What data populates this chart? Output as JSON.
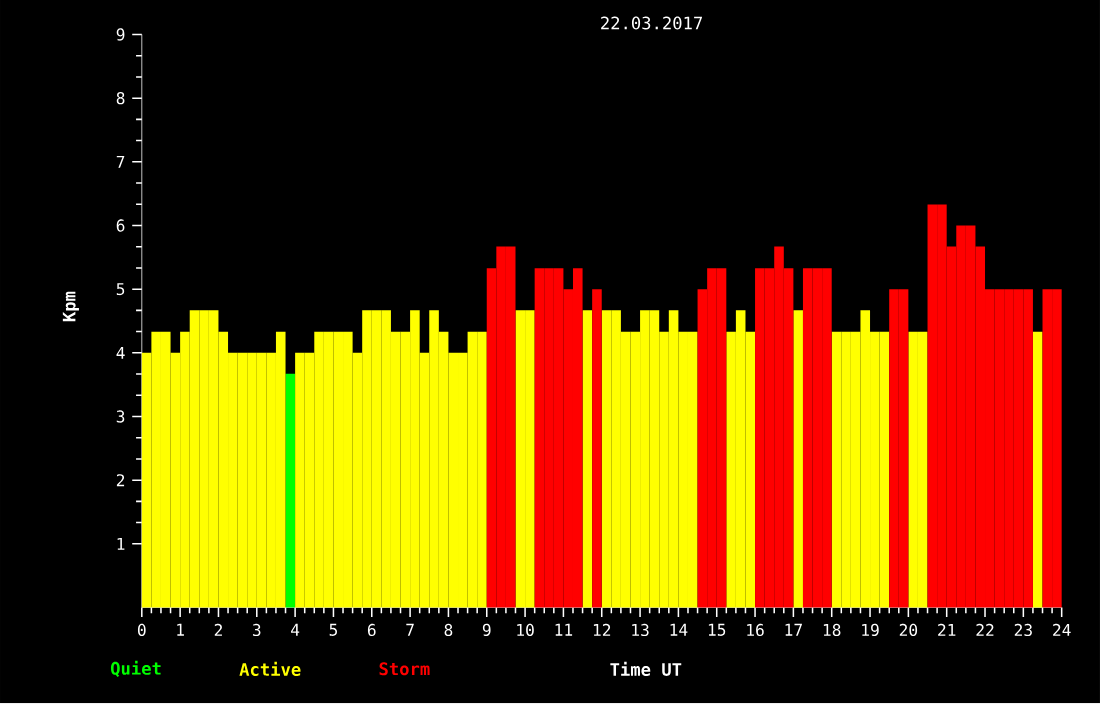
{
  "chart_data": {
    "type": "bar",
    "title": "22.03.2017",
    "xlabel": "Time UT",
    "ylabel": "Kpm",
    "x": [
      0.125,
      0.375,
      0.625,
      0.875,
      1.125,
      1.375,
      1.625,
      1.875,
      2.125,
      2.375,
      2.625,
      2.875,
      3.125,
      3.375,
      3.625,
      3.875,
      4.125,
      4.375,
      4.625,
      4.875,
      5.125,
      5.375,
      5.625,
      5.875,
      6.125,
      6.375,
      6.625,
      6.875,
      7.125,
      7.375,
      7.625,
      7.875,
      8.125,
      8.375,
      8.625,
      8.875,
      9.125,
      9.375,
      9.625,
      9.875,
      10.125,
      10.375,
      10.625,
      10.875,
      11.125,
      11.375,
      11.625,
      11.875,
      12.125,
      12.375,
      12.625,
      12.875,
      13.125,
      13.375,
      13.625,
      13.875,
      14.125,
      14.375,
      14.625,
      14.875,
      15.125,
      15.375,
      15.625,
      15.875,
      16.125,
      16.375,
      16.625,
      16.875,
      17.125,
      17.375,
      17.625,
      17.875,
      18.125,
      18.375,
      18.625,
      18.875,
      19.125,
      19.375,
      19.625,
      19.875,
      20.125,
      20.375,
      20.625,
      20.875,
      21.125,
      21.375,
      21.625,
      21.875,
      22.125,
      22.375,
      22.625,
      22.875,
      23.125,
      23.375,
      23.625,
      23.875
    ],
    "series": [
      {
        "name": "Quiet",
        "color": "#00ff00",
        "values": [
          null,
          null,
          null,
          null,
          null,
          null,
          null,
          null,
          null,
          null,
          null,
          null,
          null,
          null,
          null,
          3.67,
          null,
          null,
          null,
          null,
          null,
          null,
          null,
          null,
          null,
          null,
          null,
          null,
          null,
          null,
          null,
          null,
          null,
          null,
          null,
          null,
          null,
          null,
          null,
          null,
          null,
          null,
          null,
          null,
          null,
          null,
          null,
          null,
          null,
          null,
          null,
          null,
          null,
          null,
          null,
          null,
          null,
          null,
          null,
          null,
          null,
          null,
          null,
          null,
          null,
          null,
          null,
          null,
          null,
          null,
          null,
          null,
          null,
          null,
          null,
          null,
          null,
          null,
          null,
          null,
          null,
          null,
          null,
          null,
          null,
          null,
          null,
          null,
          null,
          null,
          null,
          null,
          null,
          null,
          null,
          null
        ]
      },
      {
        "name": "Active",
        "color": "#ffff00",
        "values": [
          4,
          4.33,
          4.33,
          4,
          4.33,
          4.67,
          4.67,
          4.67,
          4.33,
          4,
          4,
          4,
          4,
          4,
          4.33,
          null,
          4,
          4,
          4.33,
          4.33,
          4.33,
          4.33,
          4,
          4.67,
          4.67,
          4.67,
          4.33,
          4.33,
          4.67,
          4,
          4.67,
          4.33,
          4,
          4,
          4.33,
          4.33,
          null,
          null,
          null,
          4.67,
          4.67,
          null,
          null,
          null,
          null,
          null,
          4.67,
          null,
          4.67,
          4.67,
          4.33,
          4.33,
          4.67,
          4.67,
          4.33,
          4.67,
          4.33,
          4.33,
          null,
          null,
          null,
          4.33,
          4.67,
          4.33,
          null,
          null,
          null,
          null,
          4.67,
          null,
          null,
          null,
          4.33,
          4.33,
          4.33,
          4.67,
          4.33,
          4.33,
          null,
          null,
          4.33,
          4.33,
          null,
          null,
          null,
          null,
          null,
          null,
          null,
          null,
          null,
          null,
          null,
          4.33,
          null,
          null
        ]
      },
      {
        "name": "Storm",
        "color": "#ff0000",
        "values": [
          null,
          null,
          null,
          null,
          null,
          null,
          null,
          null,
          null,
          null,
          null,
          null,
          null,
          null,
          null,
          null,
          null,
          null,
          null,
          null,
          null,
          null,
          null,
          null,
          null,
          null,
          null,
          null,
          null,
          null,
          null,
          null,
          null,
          null,
          null,
          null,
          5.33,
          5.67,
          5.67,
          null,
          null,
          5.33,
          5.33,
          5.33,
          5,
          5.33,
          null,
          5,
          null,
          null,
          null,
          null,
          null,
          null,
          null,
          null,
          null,
          null,
          5,
          5.33,
          5.33,
          null,
          null,
          null,
          5.33,
          5.33,
          5.67,
          5.33,
          null,
          5.33,
          5.33,
          5.33,
          null,
          null,
          null,
          null,
          null,
          null,
          5,
          5,
          null,
          null,
          6.33,
          6.33,
          5.67,
          6,
          6,
          5.67,
          5,
          5,
          5,
          5,
          5,
          null,
          5,
          5
        ]
      }
    ],
    "xlim": [
      0,
      24
    ],
    "ylim": [
      0,
      9
    ],
    "xticks": [
      0,
      1,
      2,
      3,
      4,
      5,
      6,
      7,
      8,
      9,
      10,
      11,
      12,
      13,
      14,
      15,
      16,
      17,
      18,
      19,
      20,
      21,
      22,
      23,
      24
    ],
    "yticks": [
      1,
      2,
      3,
      4,
      5,
      6,
      7,
      8,
      9
    ],
    "legend": "bottom"
  }
}
